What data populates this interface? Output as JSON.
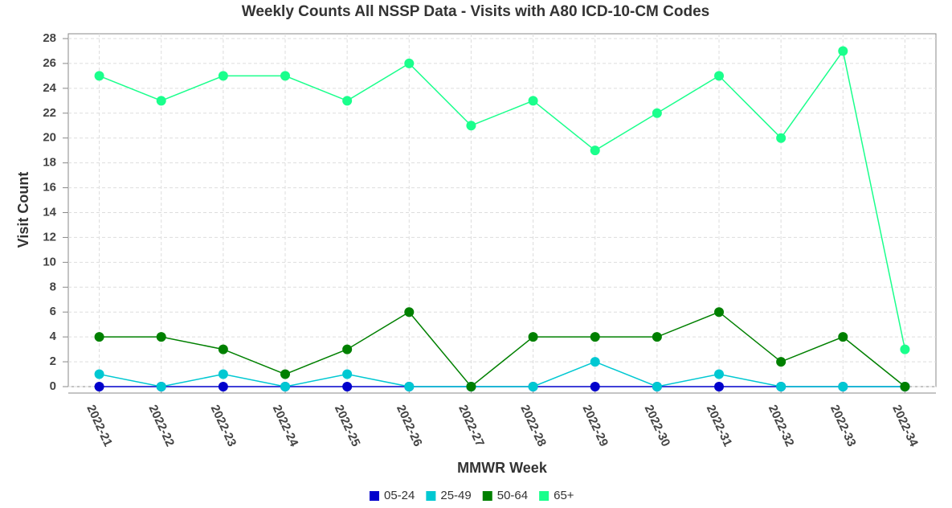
{
  "chart_data": {
    "type": "line",
    "title": "Weekly Counts All NSSP Data - Visits with A80 ICD-10-CM Codes",
    "x_label": "MMWR Week",
    "y_label": "Visit Count",
    "categories": [
      "2022-21",
      "2022-22",
      "2022-23",
      "2022-24",
      "2022-25",
      "2022-26",
      "2022-27",
      "2022-28",
      "2022-29",
      "2022-30",
      "2022-31",
      "2022-32",
      "2022-33",
      "2022-34"
    ],
    "series": [
      {
        "name": "05-24",
        "color": "#0000cc",
        "values": [
          0,
          0,
          0,
          0,
          0,
          0,
          0,
          0,
          0,
          0,
          0,
          0,
          0,
          0
        ]
      },
      {
        "name": "25-49",
        "color": "#00c8d2",
        "values": [
          1,
          0,
          1,
          0,
          1,
          0,
          0,
          0,
          2,
          0,
          1,
          0,
          0,
          0
        ]
      },
      {
        "name": "50-64",
        "color": "#008000",
        "values": [
          4,
          4,
          3,
          1,
          3,
          6,
          0,
          4,
          4,
          4,
          6,
          2,
          4,
          0
        ]
      },
      {
        "name": "65+",
        "color": "#1aff8c",
        "values": [
          25,
          23,
          25,
          25,
          23,
          26,
          21,
          23,
          19,
          22,
          25,
          20,
          27,
          3
        ]
      }
    ],
    "ylim": [
      0,
      28
    ],
    "yticks": [
      0,
      2,
      4,
      6,
      8,
      10,
      12,
      14,
      16,
      18,
      20,
      22,
      24,
      26,
      28
    ],
    "grid": true,
    "legend": "bottom"
  }
}
